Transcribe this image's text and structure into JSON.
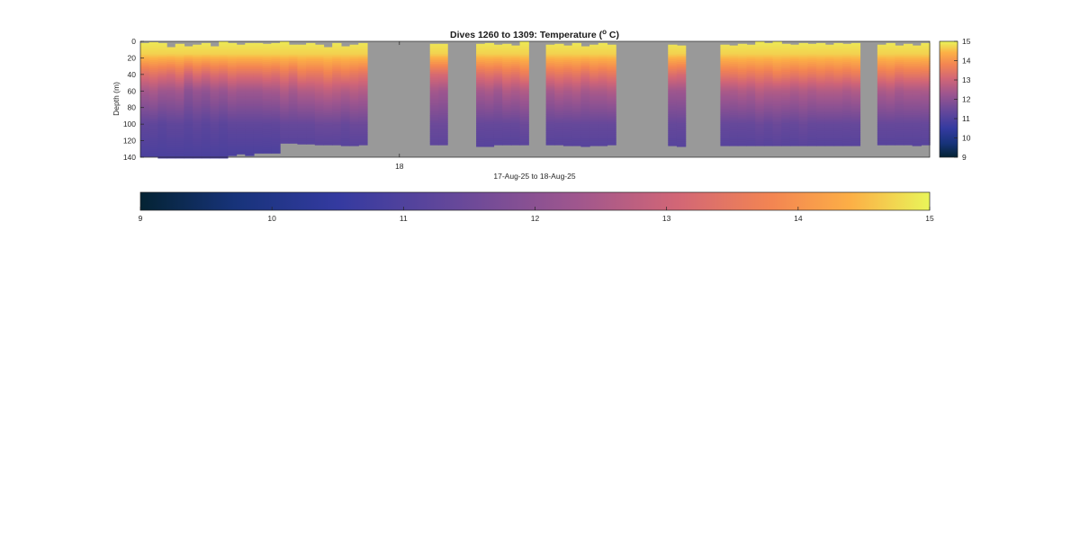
{
  "chart_data": [
    {
      "type": "heatmap",
      "title": "Dives 1260 to 1309: Temperature (",
      "title_superscript": "o",
      "title_suffix": " C)",
      "xlabel": "17-Aug-25 to 18-Aug-25",
      "ylabel": "Depth (m)",
      "x_ticks": [
        "18"
      ],
      "y_ticks": [
        "0",
        "20",
        "40",
        "60",
        "80",
        "100",
        "120",
        "140"
      ],
      "ylim": [
        0,
        140
      ],
      "y_direction": "reversed",
      "colormap": "thermal",
      "clim": [
        9,
        15
      ],
      "colorbar_ticks": [
        "15",
        "14",
        "13",
        "12",
        "11",
        "10",
        "9"
      ],
      "nan_color": "#999999",
      "dive_groups": [
        {
          "profiles": [
            {
              "top": 2,
              "bottom": 139,
              "t40": 13.3,
              "t60": 12.4,
              "t100": 11.3,
              "tbot": 10.9
            },
            {
              "top": 1,
              "bottom": 139,
              "t40": 13.4,
              "t60": 12.5,
              "t100": 11.3,
              "tbot": 10.9
            },
            {
              "top": 2,
              "bottom": 141,
              "t40": 13.3,
              "t60": 12.3,
              "t100": 11.2,
              "tbot": 10.9
            },
            {
              "top": 7,
              "bottom": 141,
              "t40": 13.2,
              "t60": 12.3,
              "t100": 11.3,
              "tbot": 10.9
            },
            {
              "top": 3,
              "bottom": 141,
              "t40": 13.4,
              "t60": 12.4,
              "t100": 11.3,
              "tbot": 10.9
            },
            {
              "top": 6,
              "bottom": 141,
              "t40": 13.0,
              "t60": 12.0,
              "t100": 11.2,
              "tbot": 10.9
            },
            {
              "top": 4,
              "bottom": 141,
              "t40": 13.3,
              "t60": 12.2,
              "t100": 11.3,
              "tbot": 10.9
            },
            {
              "top": 2,
              "bottom": 141,
              "t40": 13.1,
              "t60": 12.1,
              "t100": 11.2,
              "tbot": 10.9
            },
            {
              "top": 6,
              "bottom": 141,
              "t40": 13.3,
              "t60": 12.3,
              "t100": 11.3,
              "tbot": 10.9
            },
            {
              "top": 0,
              "bottom": 141,
              "t40": 13.2,
              "t60": 12.2,
              "t100": 11.2,
              "tbot": 10.9
            },
            {
              "top": 2,
              "bottom": 138,
              "t40": 13.4,
              "t60": 12.4,
              "t100": 11.3,
              "tbot": 10.9
            },
            {
              "top": 4,
              "bottom": 136,
              "t40": 13.3,
              "t60": 12.3,
              "t100": 11.3,
              "tbot": 10.9
            },
            {
              "top": 2,
              "bottom": 138,
              "t40": 13.3,
              "t60": 12.3,
              "t100": 11.3,
              "tbot": 10.9
            },
            {
              "top": 2,
              "bottom": 135,
              "t40": 13.3,
              "t60": 12.3,
              "t100": 11.3,
              "tbot": 10.9
            },
            {
              "top": 3,
              "bottom": 135,
              "t40": 13.4,
              "t60": 12.4,
              "t100": 11.3,
              "tbot": 10.9
            },
            {
              "top": 2,
              "bottom": 135,
              "t40": 13.3,
              "t60": 12.4,
              "t100": 11.3,
              "tbot": 10.9
            },
            {
              "top": 0,
              "bottom": 123,
              "t40": 13.5,
              "t60": 12.6,
              "t100": 11.4,
              "tbot": 11.0
            },
            {
              "top": 4,
              "bottom": 123,
              "t40": 13.3,
              "t60": 12.4,
              "t100": 11.4,
              "tbot": 11.0
            },
            {
              "top": 4,
              "bottom": 124,
              "t40": 13.6,
              "t60": 12.6,
              "t100": 11.4,
              "tbot": 11.0
            },
            {
              "top": 2,
              "bottom": 124,
              "t40": 13.5,
              "t60": 12.6,
              "t100": 11.4,
              "tbot": 11.0
            },
            {
              "top": 4,
              "bottom": 125,
              "t40": 13.5,
              "t60": 12.7,
              "t100": 11.5,
              "tbot": 11.0
            },
            {
              "top": 7,
              "bottom": 125,
              "t40": 13.7,
              "t60": 12.8,
              "t100": 11.5,
              "tbot": 11.0
            },
            {
              "top": 2,
              "bottom": 125,
              "t40": 13.5,
              "t60": 12.7,
              "t100": 11.5,
              "tbot": 11.0
            },
            {
              "top": 6,
              "bottom": 126,
              "t40": 13.6,
              "t60": 12.6,
              "t100": 11.4,
              "tbot": 11.0
            },
            {
              "top": 4,
              "bottom": 126,
              "t40": 13.5,
              "t60": 12.7,
              "t100": 11.5,
              "tbot": 11.0
            },
            {
              "top": 2,
              "bottom": 125,
              "t40": 13.4,
              "t60": 12.6,
              "t100": 11.5,
              "tbot": 11.0
            }
          ]
        },
        {
          "gap": 7.2
        },
        {
          "profiles": [
            {
              "top": 3,
              "bottom": 125,
              "t40": 13.2,
              "t60": 12.4,
              "t100": 11.5,
              "tbot": 11.1
            },
            {
              "top": 3,
              "bottom": 125,
              "t40": 13.2,
              "t60": 12.3,
              "t100": 11.5,
              "tbot": 11.1
            }
          ]
        },
        {
          "gap": 3.3
        },
        {
          "profiles": [
            {
              "top": 3,
              "bottom": 127,
              "t40": 13.3,
              "t60": 12.4,
              "t100": 11.4,
              "tbot": 11.0
            },
            {
              "top": 2,
              "bottom": 127,
              "t40": 13.4,
              "t60": 12.5,
              "t100": 11.4,
              "tbot": 11.0
            },
            {
              "top": 4,
              "bottom": 125,
              "t40": 13.3,
              "t60": 12.3,
              "t100": 11.4,
              "tbot": 11.0
            },
            {
              "top": 3,
              "bottom": 125,
              "t40": 13.5,
              "t60": 12.6,
              "t100": 11.4,
              "tbot": 11.0
            },
            {
              "top": 5,
              "bottom": 125,
              "t40": 13.4,
              "t60": 12.5,
              "t100": 11.4,
              "tbot": 11.0
            },
            {
              "top": 0,
              "bottom": 125,
              "t40": 13.6,
              "t60": 12.6,
              "t100": 11.5,
              "tbot": 11.0
            }
          ]
        },
        {
          "gap": 2
        },
        {
          "profiles": [
            {
              "top": 4,
              "bottom": 125,
              "t40": 13.4,
              "t60": 12.4,
              "t100": 11.4,
              "tbot": 11.0
            },
            {
              "top": 3,
              "bottom": 125,
              "t40": 13.5,
              "t60": 12.6,
              "t100": 11.4,
              "tbot": 11.0
            },
            {
              "top": 5,
              "bottom": 126,
              "t40": 13.4,
              "t60": 12.5,
              "t100": 11.4,
              "tbot": 11.0
            },
            {
              "top": 2,
              "bottom": 126,
              "t40": 13.5,
              "t60": 12.6,
              "t100": 11.4,
              "tbot": 11.0
            },
            {
              "top": 6,
              "bottom": 127,
              "t40": 13.3,
              "t60": 12.4,
              "t100": 11.4,
              "tbot": 11.0
            },
            {
              "top": 4,
              "bottom": 126,
              "t40": 13.5,
              "t60": 12.5,
              "t100": 11.4,
              "tbot": 11.0
            },
            {
              "top": 2,
              "bottom": 126,
              "t40": 13.4,
              "t60": 12.5,
              "t100": 11.4,
              "tbot": 11.0
            },
            {
              "top": 4,
              "bottom": 125,
              "t40": 13.5,
              "t60": 12.6,
              "t100": 11.4,
              "tbot": 11.0
            }
          ]
        },
        {
          "gap": 6
        },
        {
          "profiles": [
            {
              "top": 4,
              "bottom": 126,
              "t40": 13.3,
              "t60": 12.3,
              "t100": 11.4,
              "tbot": 11.0
            },
            {
              "top": 5,
              "bottom": 127,
              "t40": 13.2,
              "t60": 12.3,
              "t100": 11.4,
              "tbot": 11.0
            }
          ]
        },
        {
          "gap": 4
        },
        {
          "profiles": [
            {
              "top": 4,
              "bottom": 126,
              "t40": 13.5,
              "t60": 12.5,
              "t100": 11.4,
              "tbot": 11.0
            },
            {
              "top": 5,
              "bottom": 126,
              "t40": 13.5,
              "t60": 12.5,
              "t100": 11.4,
              "tbot": 11.0
            },
            {
              "top": 3,
              "bottom": 126,
              "t40": 13.6,
              "t60": 12.6,
              "t100": 11.4,
              "tbot": 11.0
            },
            {
              "top": 4,
              "bottom": 126,
              "t40": 13.5,
              "t60": 12.5,
              "t100": 11.4,
              "tbot": 11.0
            },
            {
              "top": 0,
              "bottom": 126,
              "t40": 13.6,
              "t60": 12.7,
              "t100": 11.5,
              "tbot": 11.0
            },
            {
              "top": 2,
              "bottom": 126,
              "t40": 13.5,
              "t60": 12.6,
              "t100": 11.4,
              "tbot": 11.0
            },
            {
              "top": 0,
              "bottom": 126,
              "t40": 13.7,
              "t60": 12.6,
              "t100": 11.5,
              "tbot": 11.0
            },
            {
              "top": 3,
              "bottom": 126,
              "t40": 13.6,
              "t60": 12.6,
              "t100": 11.4,
              "tbot": 11.0
            },
            {
              "top": 4,
              "bottom": 126,
              "t40": 13.5,
              "t60": 12.5,
              "t100": 11.4,
              "tbot": 11.0
            },
            {
              "top": 2,
              "bottom": 126,
              "t40": 13.6,
              "t60": 12.6,
              "t100": 11.5,
              "tbot": 11.0
            },
            {
              "top": 3,
              "bottom": 126,
              "t40": 13.5,
              "t60": 12.5,
              "t100": 11.4,
              "tbot": 11.0
            },
            {
              "top": 2,
              "bottom": 126,
              "t40": 13.6,
              "t60": 12.6,
              "t100": 11.4,
              "tbot": 11.0
            },
            {
              "top": 4,
              "bottom": 126,
              "t40": 13.5,
              "t60": 12.6,
              "t100": 11.4,
              "tbot": 11.0
            },
            {
              "top": 2,
              "bottom": 126,
              "t40": 13.6,
              "t60": 12.6,
              "t100": 11.4,
              "tbot": 11.0
            },
            {
              "top": 3,
              "bottom": 126,
              "t40": 13.5,
              "t60": 12.5,
              "t100": 11.4,
              "tbot": 11.0
            },
            {
              "top": 2,
              "bottom": 126,
              "t40": 13.6,
              "t60": 12.6,
              "t100": 11.4,
              "tbot": 11.0
            }
          ]
        },
        {
          "gap": 2
        },
        {
          "profiles": [
            {
              "top": 4,
              "bottom": 125,
              "t40": 13.5,
              "t60": 12.5,
              "t100": 11.4,
              "tbot": 11.0
            },
            {
              "top": 2,
              "bottom": 125,
              "t40": 13.6,
              "t60": 12.6,
              "t100": 11.4,
              "tbot": 11.0
            },
            {
              "top": 5,
              "bottom": 125,
              "t40": 13.4,
              "t60": 12.4,
              "t100": 11.4,
              "tbot": 11.0
            },
            {
              "top": 3,
              "bottom": 125,
              "t40": 13.5,
              "t60": 12.5,
              "t100": 11.4,
              "tbot": 11.0
            },
            {
              "top": 5,
              "bottom": 126,
              "t40": 13.5,
              "t60": 12.5,
              "t100": 11.4,
              "tbot": 11.0
            },
            {
              "top": 2,
              "bottom": 125,
              "t40": 13.5,
              "t60": 12.5,
              "t100": 11.4,
              "tbot": 11.0
            }
          ]
        }
      ]
    },
    {
      "type": "heatmap",
      "title": "",
      "colormap": "thermal",
      "clim": [
        9,
        15
      ],
      "x_ticks": [
        "9",
        "10",
        "11",
        "12",
        "13",
        "14",
        "15"
      ]
    }
  ]
}
